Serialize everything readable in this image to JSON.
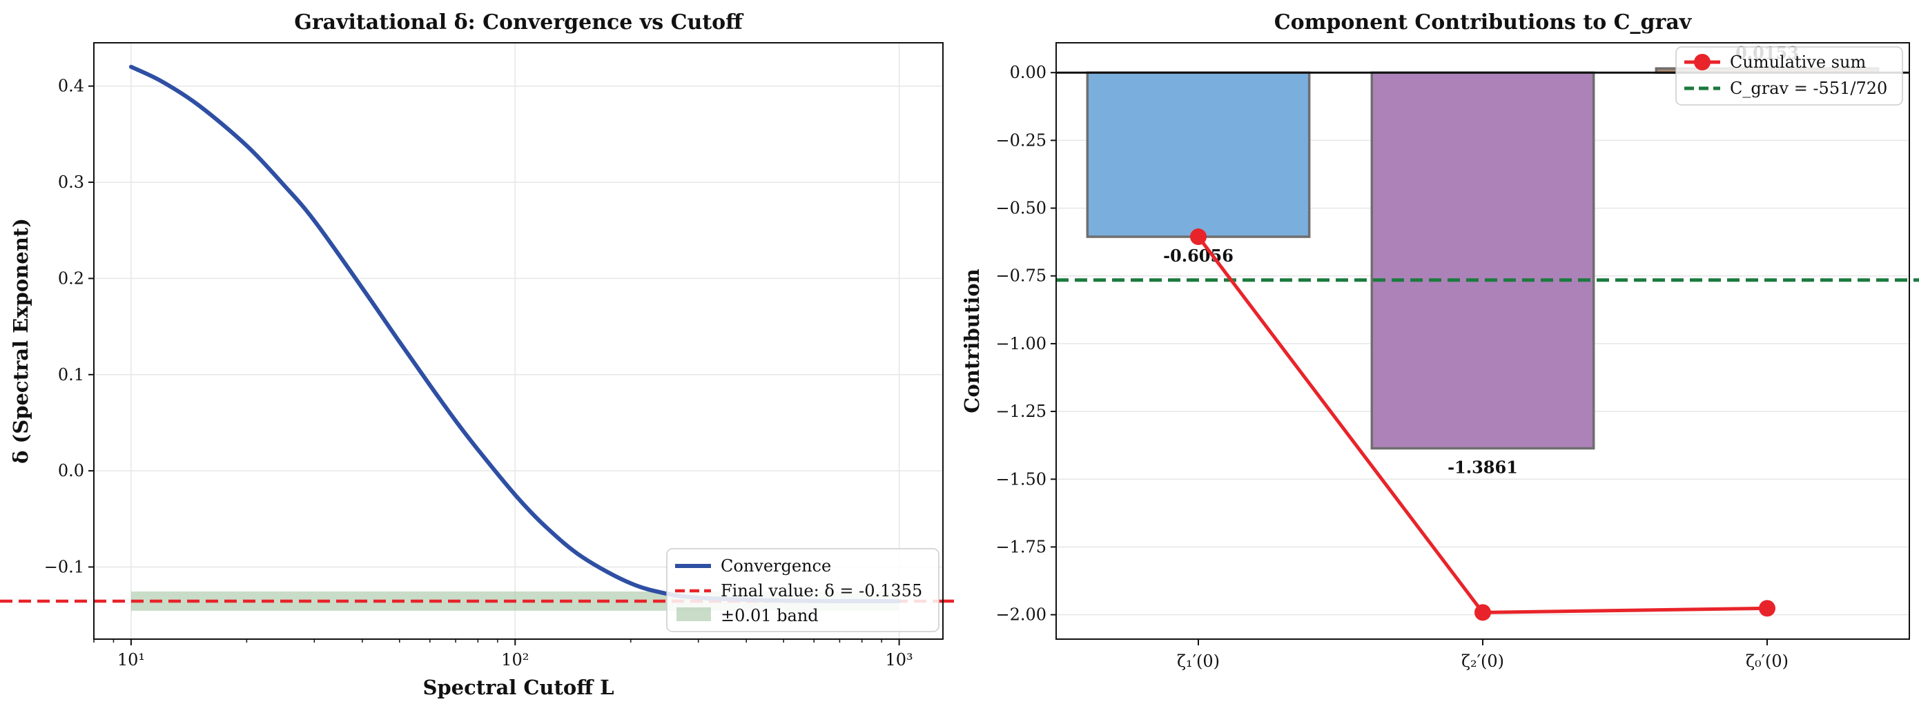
{
  "chart_data": [
    {
      "type": "line",
      "title": "Gravitational δ: Convergence vs Cutoff",
      "xlabel": "Spectral Cutoff L",
      "ylabel": "δ (Spectral Exponent)",
      "xscale": "log",
      "xlim": [
        8,
        1300
      ],
      "ylim": [
        -0.175,
        0.445
      ],
      "x_ticks": [
        10,
        100,
        1000
      ],
      "x_tick_labels": [
        "10¹",
        "10²",
        "10³"
      ],
      "y_ticks": [
        -0.1,
        0.0,
        0.1,
        0.2,
        0.3,
        0.4
      ],
      "y_tick_labels": [
        "−0.1",
        "0.0",
        "0.1",
        "0.2",
        "0.3",
        "0.4"
      ],
      "grid": true,
      "legend_position": "lower-right",
      "series": [
        {
          "name": "Convergence",
          "color": "#2e4fa3",
          "x": [
            10,
            12,
            15,
            20,
            25,
            30,
            40,
            50,
            60,
            70,
            80,
            100,
            120,
            150,
            200,
            250,
            300,
            400,
            500,
            700,
            1000
          ],
          "y": [
            0.42,
            0.405,
            0.38,
            0.338,
            0.297,
            0.26,
            0.19,
            0.134,
            0.089,
            0.052,
            0.022,
            -0.025,
            -0.058,
            -0.09,
            -0.117,
            -0.128,
            -0.132,
            -0.134,
            -0.135,
            -0.1355,
            -0.1355
          ]
        }
      ],
      "reference_line": {
        "name": "Final value: δ = -0.1355",
        "value": -0.1355,
        "color": "#e8242a",
        "style": "dashed"
      },
      "band": {
        "name": "±0.01 band",
        "center": -0.1355,
        "half_width": 0.01,
        "x_range": [
          10,
          1000
        ],
        "color": "#9dc09a"
      }
    },
    {
      "type": "bar",
      "title": "Component Contributions to C_grav",
      "xlabel": "",
      "ylabel": "Contribution",
      "categories": [
        "ζ₁′(0)",
        "ζ₂′(0)",
        "ζ₀′(0)"
      ],
      "values": [
        -0.6056,
        -1.3861,
        0.0153
      ],
      "data_labels": [
        "-0.6056",
        "-1.3861",
        "0.0153"
      ],
      "bar_colors": [
        "#7aaedc",
        "#ad82b8",
        "#b08a6e"
      ],
      "ylim": [
        -2.09,
        0.11
      ],
      "y_ticks": [
        0.0,
        -0.25,
        -0.5,
        -0.75,
        -1.0,
        -1.25,
        -1.5,
        -1.75,
        -2.0
      ],
      "y_tick_labels": [
        "0.00",
        "−0.25",
        "−0.50",
        "−0.75",
        "−1.00",
        "−1.25",
        "−1.50",
        "−1.75",
        "−2.00"
      ],
      "grid": true,
      "legend_position": "upper-right",
      "cumulative_sum": {
        "name": "Cumulative sum",
        "values": [
          -0.6056,
          -1.9917,
          -1.9764
        ],
        "color": "#e8242a"
      },
      "reference_line": {
        "name": "C_grav = -551/720",
        "value": -0.76528,
        "color": "#1b7a3e",
        "style": "dashed"
      },
      "zero_line": {
        "value": 0,
        "color": "#111111"
      }
    }
  ]
}
